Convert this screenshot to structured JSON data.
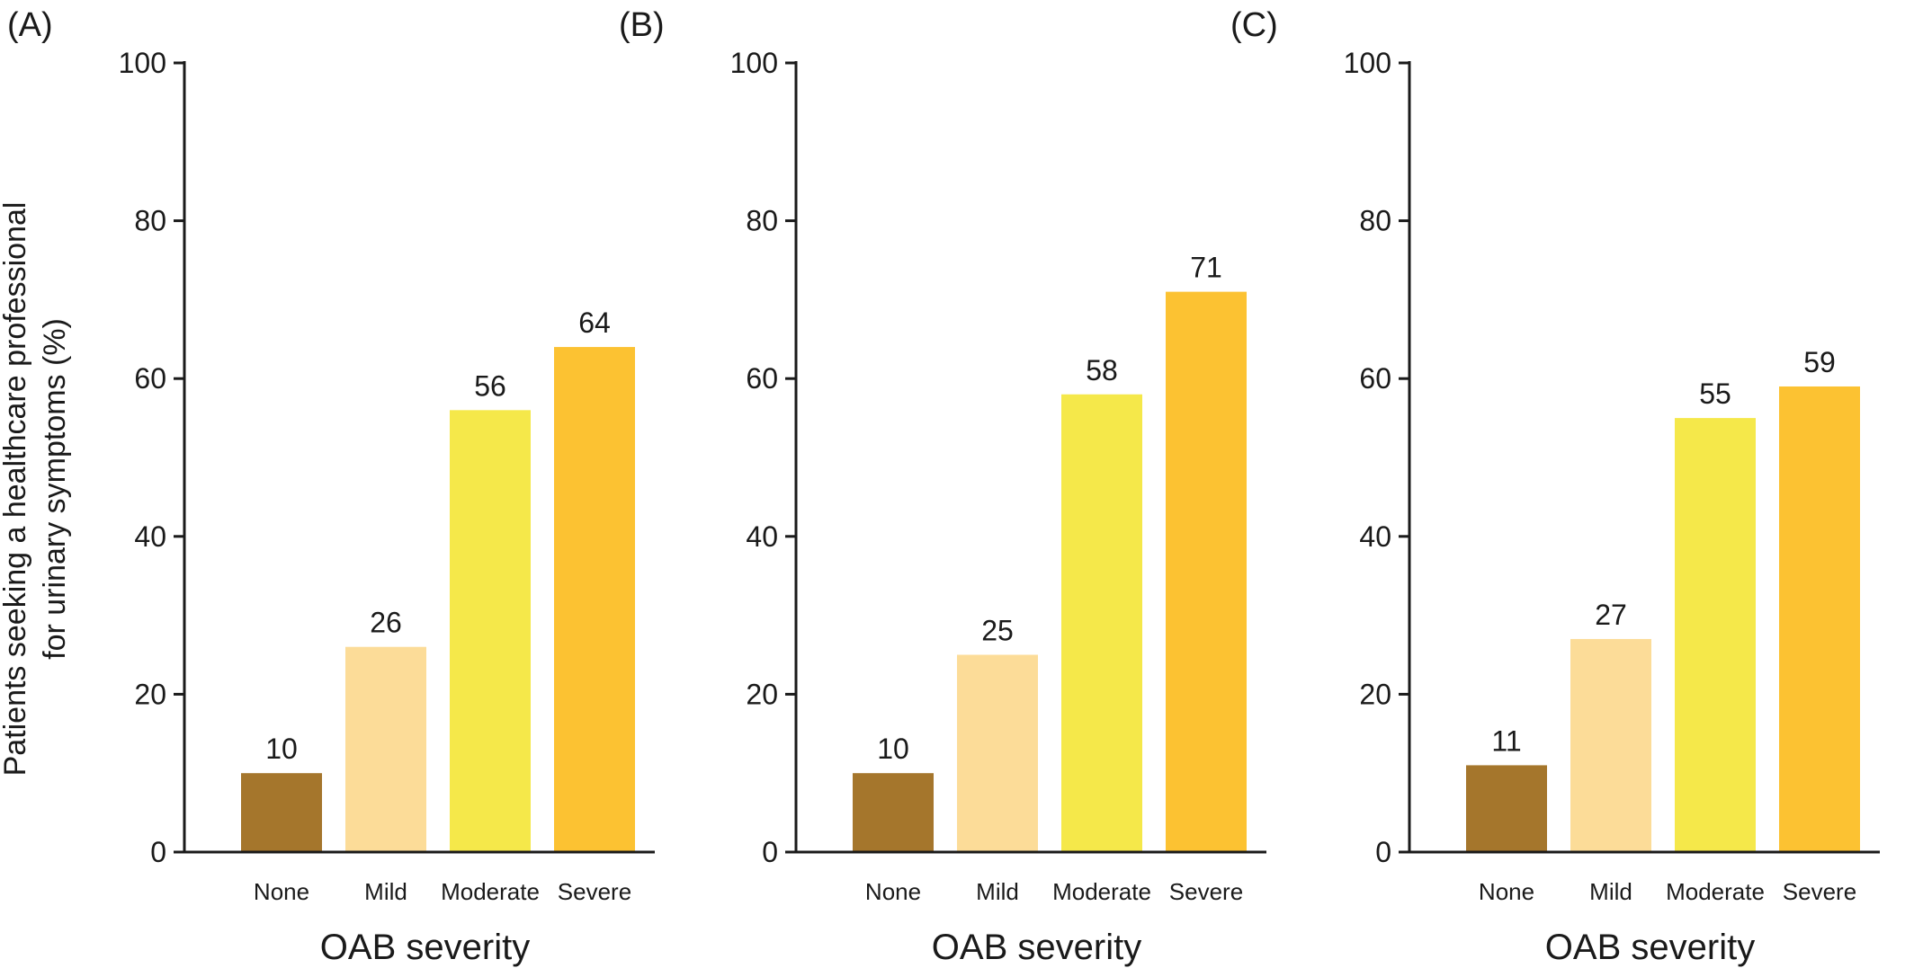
{
  "ylabel": [
    "Patients seeking a healthcare professional",
    "for urinary symptoms (%)"
  ],
  "colors": {
    "None": "#a5762c",
    "Mild": "#fcdc98",
    "Moderate": "#f5e84a",
    "Severe": "#fcc232",
    "axis": "#1a1a1a"
  },
  "chart_data": [
    {
      "type": "bar",
      "panel": "(A)",
      "categories": [
        "None",
        "Mild",
        "Moderate",
        "Severe"
      ],
      "values": [
        10,
        26,
        56,
        64
      ],
      "xlabel": "OAB severity",
      "ylabel": "Patients seeking a healthcare professional for urinary symptoms (%)",
      "ylim": [
        0,
        100
      ],
      "yticks": [
        0,
        20,
        40,
        60,
        80,
        100
      ]
    },
    {
      "type": "bar",
      "panel": "(B)",
      "categories": [
        "None",
        "Mild",
        "Moderate",
        "Severe"
      ],
      "values": [
        10,
        25,
        58,
        71
      ],
      "xlabel": "OAB severity",
      "ylabel": "",
      "ylim": [
        0,
        100
      ],
      "yticks": [
        0,
        20,
        40,
        60,
        80,
        100
      ]
    },
    {
      "type": "bar",
      "panel": "(C)",
      "categories": [
        "None",
        "Mild",
        "Moderate",
        "Severe"
      ],
      "values": [
        11,
        27,
        55,
        59
      ],
      "xlabel": "OAB severity",
      "ylabel": "",
      "ylim": [
        0,
        100
      ],
      "yticks": [
        0,
        20,
        40,
        60,
        80,
        100
      ]
    }
  ]
}
